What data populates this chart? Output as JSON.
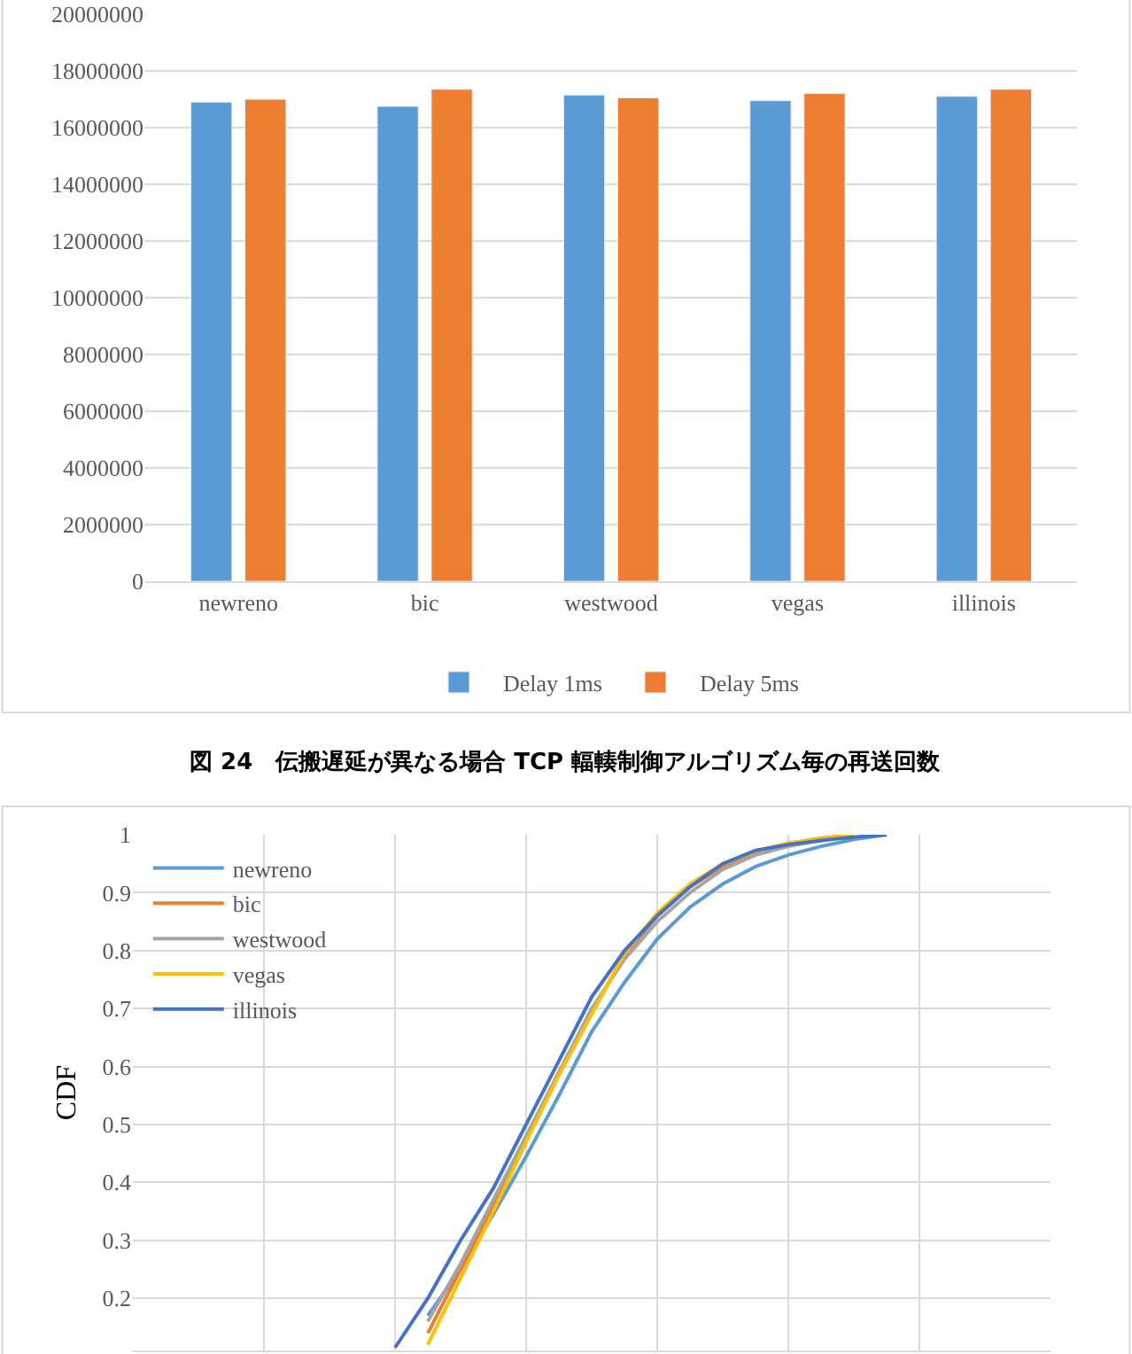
{
  "chart_data": [
    {
      "type": "bar",
      "categories": [
        "newreno",
        "bic",
        "westwood",
        "vegas",
        "illinois"
      ],
      "series": [
        {
          "name": "Delay 1ms",
          "color": "#5b9bd5",
          "values": [
            16900000,
            16750000,
            17150000,
            16950000,
            17100000
          ]
        },
        {
          "name": "Delay 5ms",
          "color": "#ed7d31",
          "values": [
            17000000,
            17350000,
            17050000,
            17200000,
            17350000
          ]
        }
      ],
      "ylim": [
        0,
        20000000
      ],
      "yticks": [
        0,
        2000000,
        4000000,
        6000000,
        8000000,
        10000000,
        12000000,
        14000000,
        16000000,
        18000000,
        20000000
      ],
      "grid": "y",
      "legend": "bottom",
      "annotations": [
        "図 24　伝搬遅延が異なる場合 TCP 輻輳制御アルゴリズム毎の再送回数"
      ]
    },
    {
      "type": "line",
      "ylabel": "CDF",
      "categories": [
        null,
        null,
        null,
        null,
        null,
        null,
        null,
        null,
        null,
        null,
        null,
        null,
        null,
        null,
        null,
        null,
        null,
        null,
        null,
        null,
        null,
        null,
        null,
        null,
        null,
        null,
        null,
        null,
        null
      ],
      "series": [
        {
          "name": "newreno",
          "color": "#5b9bd5",
          "values": [
            null,
            null,
            null,
            null,
            null,
            null,
            null,
            null,
            null,
            0.17,
            0.25,
            0.345,
            0.445,
            0.55,
            0.66,
            0.745,
            0.82,
            0.875,
            0.915,
            0.945,
            0.965,
            0.98,
            0.992,
            1.0,
            null,
            null,
            null,
            null,
            null
          ]
        },
        {
          "name": "bic",
          "color": "#ed7d31",
          "values": [
            null,
            null,
            null,
            null,
            null,
            null,
            null,
            null,
            null,
            0.14,
            0.25,
            0.36,
            0.475,
            0.59,
            0.695,
            0.79,
            0.86,
            0.91,
            0.945,
            0.97,
            0.985,
            0.994,
            1.0,
            null,
            null,
            null,
            null,
            null,
            null
          ]
        },
        {
          "name": "westwood",
          "color": "#a5a5a5",
          "values": [
            null,
            null,
            null,
            null,
            null,
            null,
            null,
            null,
            null,
            0.16,
            0.26,
            0.37,
            0.48,
            0.59,
            0.7,
            0.785,
            0.85,
            0.9,
            0.94,
            0.965,
            0.98,
            0.99,
            1.0,
            null,
            null,
            null,
            null,
            null,
            null
          ]
        },
        {
          "name": "vegas",
          "color": "#ffc000",
          "values": [
            null,
            null,
            null,
            null,
            null,
            null,
            null,
            null,
            null,
            0.12,
            0.235,
            0.35,
            0.47,
            0.585,
            0.69,
            0.795,
            0.865,
            0.915,
            0.95,
            0.972,
            0.985,
            0.993,
            1.0,
            null,
            null,
            null,
            null,
            null,
            null
          ]
        },
        {
          "name": "illinois",
          "color": "#4472c4",
          "values": [
            null,
            null,
            null,
            null,
            null,
            null,
            null,
            null,
            0.115,
            0.2,
            0.3,
            0.39,
            0.5,
            0.61,
            0.72,
            0.8,
            0.86,
            0.91,
            0.95,
            0.973,
            0.983,
            0.99,
            0.996,
            1.0,
            null,
            null,
            null,
            null,
            null
          ]
        }
      ],
      "ylim": [
        0.11,
        1
      ],
      "yticks": [
        0.2,
        0.3,
        0.4,
        0.5,
        0.6,
        0.7,
        0.8,
        0.9,
        1
      ],
      "grid": true,
      "legend": "top left",
      "tick_labels": "y",
      "marker": "none",
      "line_style": "solid"
    }
  ]
}
